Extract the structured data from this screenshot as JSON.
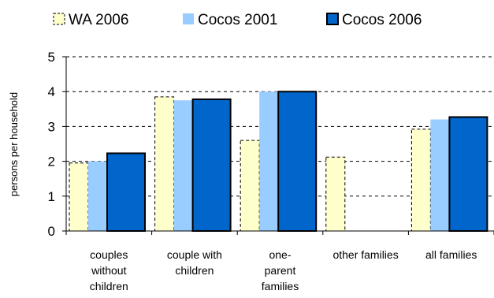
{
  "chart_data": {
    "type": "bar",
    "title": "",
    "xlabel": "",
    "ylabel": "persons per household",
    "ylim": [
      0,
      5
    ],
    "yticks": [
      0,
      1,
      2,
      3,
      4,
      5
    ],
    "grid": true,
    "legend_position": "top",
    "categories": [
      [
        "couples",
        "without",
        "children"
      ],
      [
        "couple with",
        "children"
      ],
      [
        "one-",
        "parent",
        "families"
      ],
      [
        "other families"
      ],
      [
        "all families"
      ]
    ],
    "series": [
      {
        "name": "WA 2006",
        "values": [
          1.95,
          3.85,
          2.6,
          2.12,
          2.92
        ],
        "color": "#ffffcc",
        "stroke": "#000000",
        "dashed": true
      },
      {
        "name": "Cocos 2001",
        "values": [
          2.0,
          3.75,
          4.0,
          null,
          3.2
        ],
        "color": "#99ccff",
        "stroke": "none",
        "dashed": false
      },
      {
        "name": "Cocos 2006",
        "values": [
          2.23,
          3.78,
          4.0,
          null,
          3.27
        ],
        "color": "#0066cc",
        "stroke": "#000000",
        "dashed": false
      }
    ]
  }
}
